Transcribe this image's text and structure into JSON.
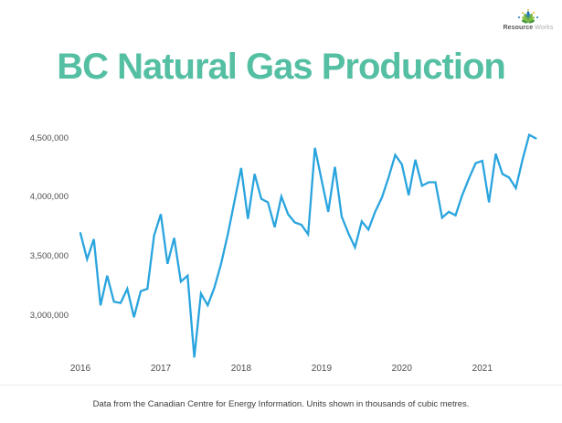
{
  "title": "BC Natural Gas Production",
  "brand": {
    "name_primary": "Resource",
    "name_secondary": "Works"
  },
  "footer": {
    "caption": "Data from the Canadian Centre for Energy Information. Units shown in thousands of cubic metres."
  },
  "colors": {
    "title": "#54bfa2",
    "line": "#29a4de",
    "axis_text": "#4c4c4c",
    "footer_text": "#3c3c3c",
    "logo_primary_text": "#55565a",
    "logo_secondary_text": "#a9abae",
    "logo_leaf_green": "#6ab04c",
    "logo_leaf_blue": "#2176bd",
    "logo_dot_yellow": "#f2c14e"
  },
  "chart_data": {
    "type": "line",
    "title": "BC Natural Gas Production",
    "unit": "thousands of cubic metres",
    "grid": false,
    "legend": false,
    "x_start": "2016-01",
    "x_end": "2021-09",
    "x_frequency": "monthly",
    "ylim": [
      2600000,
      4650000
    ],
    "y_axis": {
      "ticks": [
        {
          "label": "4,500,000",
          "value": 4500000
        },
        {
          "label": "4,000,000",
          "value": 4000000
        },
        {
          "label": "3,500,000",
          "value": 3500000
        },
        {
          "label": "3,000,000",
          "value": 3000000
        }
      ]
    },
    "x_axis": {
      "ticks": [
        {
          "label": "2016",
          "month_index": 0
        },
        {
          "label": "2017",
          "month_index": 12
        },
        {
          "label": "2018",
          "month_index": 24
        },
        {
          "label": "2019",
          "month_index": 36
        },
        {
          "label": "2020",
          "month_index": 48
        },
        {
          "label": "2021",
          "month_index": 60
        }
      ]
    },
    "series": [
      {
        "name": "BC natural gas production",
        "values": [
          3700000,
          3480000,
          3650000,
          3090000,
          3340000,
          3120000,
          3110000,
          3230000,
          2990000,
          3210000,
          3230000,
          3680000,
          3860000,
          3440000,
          3660000,
          3290000,
          3340000,
          2650000,
          3190000,
          3090000,
          3240000,
          3440000,
          3690000,
          3970000,
          4250000,
          3820000,
          4200000,
          3990000,
          3960000,
          3750000,
          4010000,
          3860000,
          3790000,
          3770000,
          3690000,
          4420000,
          4150000,
          3880000,
          4260000,
          3840000,
          3700000,
          3580000,
          3800000,
          3730000,
          3880000,
          4000000,
          4170000,
          4360000,
          4280000,
          4020000,
          4320000,
          4100000,
          4130000,
          4130000,
          3830000,
          3880000,
          3850000,
          4020000,
          4160000,
          4290000,
          4310000,
          3960000,
          4370000,
          4200000,
          4170000,
          4080000,
          4320000,
          4530000,
          4500000
        ]
      }
    ]
  }
}
